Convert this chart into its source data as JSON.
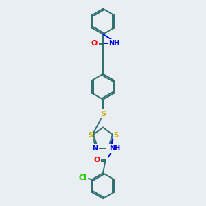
{
  "background_color": "#e8eef2",
  "bond_color": "#2d6e6e",
  "atom_colors": {
    "O": "#ff0000",
    "N": "#0000ee",
    "S": "#ccaa00",
    "Cl": "#22cc00",
    "C": "#2d6e6e"
  },
  "line_width": 1.4,
  "font_size": 7.0,
  "ring_r": 0.2
}
